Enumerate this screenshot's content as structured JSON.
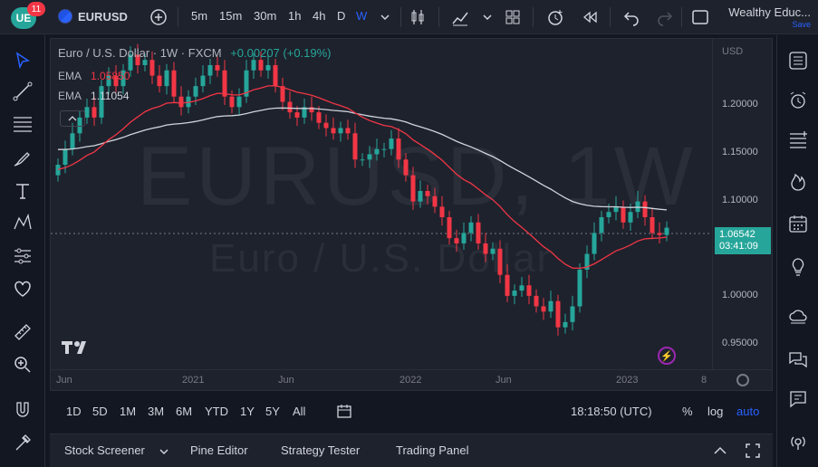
{
  "topbar": {
    "logo_text": "UE",
    "notifications": "11",
    "symbol": "EURUSD",
    "intervals": [
      "5m",
      "15m",
      "30m",
      "1h",
      "4h",
      "D",
      "W"
    ],
    "active_interval": "W",
    "account_name": "Wealthy Educ...",
    "save_label": "Save"
  },
  "chart": {
    "title": "Euro / U.S. Dollar · 1W · FXCM",
    "change": "+0.00207 (+0.19%)",
    "ema1_label": "EMA",
    "ema1_value": "1.05850",
    "ema2_label": "EMA",
    "ema2_value": "1.11054",
    "watermark_big": "EURUSD, 1W",
    "watermark_small": "Euro / U.S. Dollar",
    "currency": "USD",
    "current_price": "1.06542",
    "countdown": "03:41:09",
    "price_ticks": [
      "1.20000",
      "1.15000",
      "1.10000",
      "1.00000",
      "0.95000"
    ],
    "time_ticks": [
      "Jun",
      "2021",
      "Jun",
      "2022",
      "Jun",
      "2023",
      "8"
    ],
    "colors": {
      "up": "#26a69a",
      "down": "#f23645",
      "ema_fast": "#f23645",
      "ema_slow": "#d1d4dc"
    }
  },
  "chart_data": {
    "type": "candlestick",
    "symbol": "EURUSD",
    "timeframe": "1W",
    "ylim": [
      0.93,
      1.245
    ],
    "close_series": [
      1.125,
      1.14,
      1.155,
      1.17,
      1.18,
      1.17,
      1.2,
      1.21,
      1.2,
      1.215,
      1.23,
      1.22,
      1.225,
      1.21,
      1.2,
      1.215,
      1.19,
      1.18,
      1.19,
      1.2,
      1.21,
      1.22,
      1.215,
      1.19,
      1.18,
      1.19,
      1.215,
      1.225,
      1.215,
      1.22,
      1.2,
      1.185,
      1.175,
      1.17,
      1.18,
      1.175,
      1.165,
      1.16,
      1.155,
      1.16,
      1.155,
      1.13,
      1.13,
      1.135,
      1.14,
      1.14,
      1.15,
      1.13,
      1.115,
      1.09,
      1.1,
      1.095,
      1.085,
      1.075,
      1.055,
      1.05,
      1.06,
      1.07,
      1.05,
      1.04,
      1.045,
      1.02,
      1.0,
      1.005,
      1.01,
      1.0,
      0.99,
      0.985,
      0.995,
      0.97,
      0.975,
      0.99,
      1.025,
      1.04,
      1.06,
      1.075,
      1.08,
      1.085,
      1.07,
      1.08,
      1.09,
      1.075,
      1.06,
      1.058,
      1.065
    ],
    "ema_fast_label": "EMA",
    "ema_fast_last": 1.0585,
    "ema_slow_label": "EMA",
    "ema_slow_last": 1.11054
  },
  "tf_bar": {
    "ranges": [
      "1D",
      "5D",
      "1M",
      "3M",
      "6M",
      "YTD",
      "1Y",
      "5Y",
      "All"
    ],
    "clock": "18:18:50 (UTC)",
    "pct": "%",
    "log": "log",
    "auto": "auto"
  },
  "bottom": {
    "tabs": [
      "Stock Screener",
      "Pine Editor",
      "Strategy Tester",
      "Trading Panel"
    ]
  }
}
